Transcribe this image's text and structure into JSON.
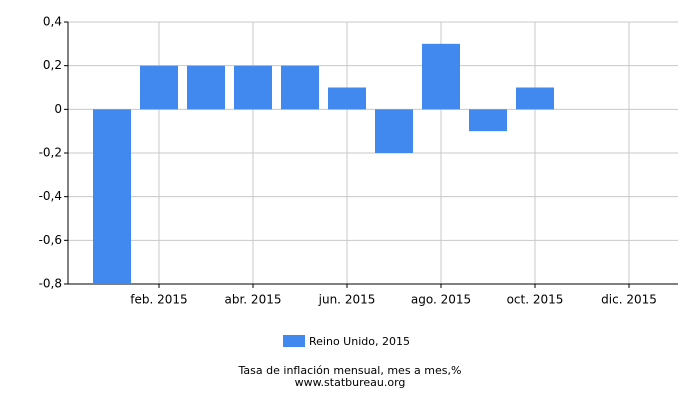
{
  "chart_data": {
    "type": "bar",
    "categories": [
      null,
      "feb. 2015",
      null,
      "abr. 2015",
      null,
      "jun. 2015",
      null,
      "ago. 2015",
      null,
      "oct. 2015",
      null,
      "dic. 2015"
    ],
    "series": [
      {
        "name": "Reino Unido, 2015",
        "color": "#4189ee",
        "values": [
          -0.8,
          0.2,
          0.2,
          0.2,
          0.2,
          0.1,
          -0.2,
          0.3,
          -0.1,
          0.1,
          null,
          null
        ]
      }
    ],
    "ylim": [
      -0.8,
      0.4
    ],
    "yticks": [
      {
        "value": -0.8,
        "label": "-0,8"
      },
      {
        "value": -0.6,
        "label": "-0,6"
      },
      {
        "value": -0.4,
        "label": "-0,4"
      },
      {
        "value": -0.2,
        "label": "-0,2"
      },
      0,
      {
        "value": 0.2,
        "label": "0,2"
      },
      {
        "value": 0.4,
        "label": "0,4"
      }
    ],
    "grid": true,
    "title": "Tasa de inflación mensual, mes a mes,%",
    "source": "www.statbureau.org"
  }
}
